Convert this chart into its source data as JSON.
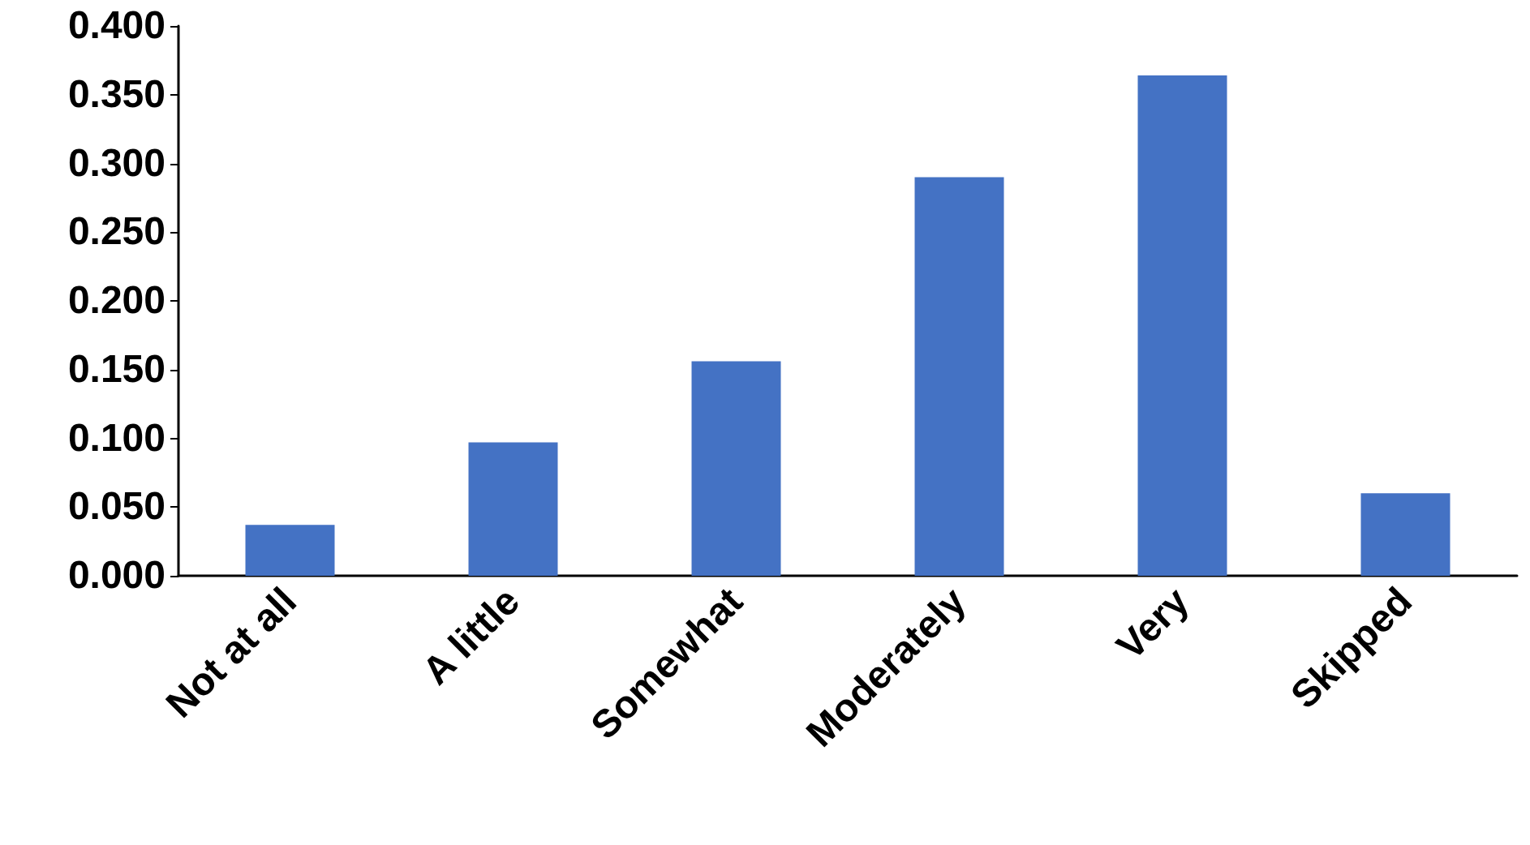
{
  "chart_data": {
    "type": "bar",
    "categories": [
      "Not at all",
      "A little",
      "Somewhat",
      "Moderately",
      "Very",
      "Skipped"
    ],
    "values": [
      0.037,
      0.097,
      0.156,
      0.29,
      0.364,
      0.06
    ],
    "color": "#4472c4",
    "ylim": [
      0,
      0.4
    ],
    "yticks": [
      {
        "value": 0,
        "label": "0.000"
      },
      {
        "value": 0.05,
        "label": "0.050"
      },
      {
        "value": 0.1,
        "label": "0.100"
      },
      {
        "value": 0.15,
        "label": "0.150"
      },
      {
        "value": 0.2,
        "label": "0.200"
      },
      {
        "value": 0.25,
        "label": "0.250"
      },
      {
        "value": 0.3,
        "label": "0.300"
      },
      {
        "value": 0.35,
        "label": "0.350"
      },
      {
        "value": 0.4,
        "label": "0.400"
      }
    ],
    "grid": false
  }
}
